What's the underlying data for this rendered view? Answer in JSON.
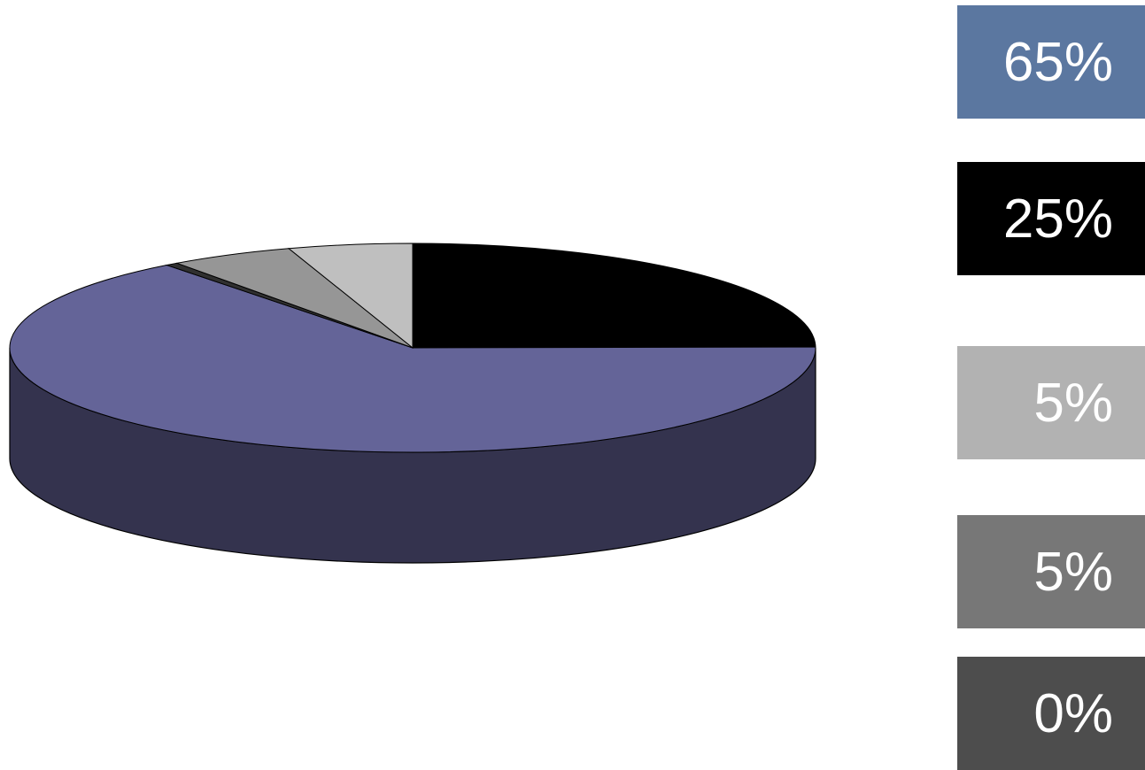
{
  "chart_data": {
    "type": "pie",
    "style": "3d",
    "slices": [
      {
        "value": 25,
        "label": "25%",
        "color": "#000000"
      },
      {
        "value": 65,
        "label": "65%",
        "color": "#646498"
      },
      {
        "value": 0.5,
        "color": "#303030"
      },
      {
        "value": 5,
        "color": "#969696"
      },
      {
        "value": 5,
        "color": "#bfbfbf"
      }
    ],
    "side_color": "#34334e",
    "legend": [
      {
        "label": "65%",
        "color": "#5b77a0"
      },
      {
        "label": "25%",
        "color": "#000000"
      },
      {
        "label": "5%",
        "color": "#b2b2b2"
      },
      {
        "label": "5%",
        "color": "#777777"
      },
      {
        "label": "0%",
        "color": "#4d4d4d"
      }
    ]
  }
}
